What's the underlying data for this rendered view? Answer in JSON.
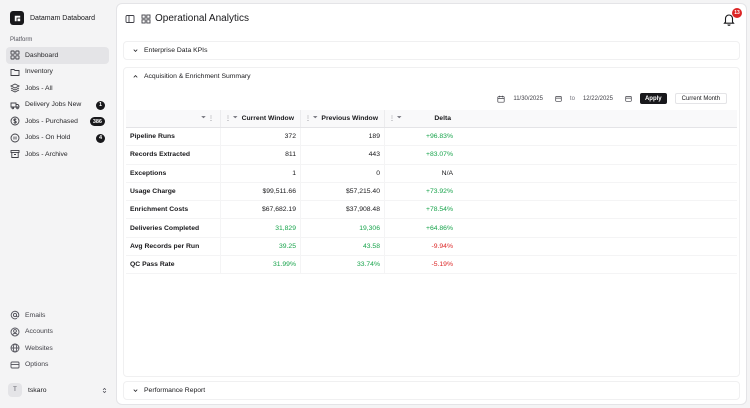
{
  "app": {
    "name": "Datamam Databoard"
  },
  "sidebar": {
    "group_label": "Platform",
    "items": [
      {
        "label": "Dashboard",
        "icon": "grid-icon",
        "active": true
      },
      {
        "label": "Inventory",
        "icon": "folder-icon"
      },
      {
        "label": "Jobs - All",
        "icon": "layers-icon"
      },
      {
        "label": "Delivery Jobs New",
        "icon": "truck-icon",
        "badge": "1"
      },
      {
        "label": "Jobs - Purchased",
        "icon": "dollar-icon",
        "badge": "386"
      },
      {
        "label": "Jobs - On Hold",
        "icon": "pause-icon",
        "badge": "4"
      },
      {
        "label": "Jobs - Archive",
        "icon": "archive-icon"
      }
    ],
    "secondary": [
      {
        "label": "Emails",
        "icon": "at-icon"
      },
      {
        "label": "Accounts",
        "icon": "user-circle-icon"
      },
      {
        "label": "Websites",
        "icon": "globe-icon"
      },
      {
        "label": "Options",
        "icon": "options-icon"
      }
    ],
    "user": {
      "initial": "T",
      "name": "tskaro"
    }
  },
  "header": {
    "title": "Operational Analytics",
    "notifications": "13"
  },
  "sections": {
    "kpis": "Enterprise Data KPIs",
    "summary": "Acquisition & Enrichment Summary",
    "performance": "Performance Report"
  },
  "filters": {
    "start_date": "11/30/2025",
    "separator": "to",
    "end_date": "12/22/2025",
    "apply": "Apply",
    "preset": "Current Month"
  },
  "table": {
    "columns": [
      "",
      "Current Window",
      "Previous Window",
      "Delta"
    ],
    "rows": [
      {
        "metric": "Pipeline Runs",
        "current": "372",
        "previous": "189",
        "delta": "+96.83%",
        "delta_status": "green"
      },
      {
        "metric": "Records Extracted",
        "current": "811",
        "previous": "443",
        "delta": "+83.07%",
        "delta_status": "green"
      },
      {
        "metric": "Exceptions",
        "current": "1",
        "previous": "0",
        "delta": "N/A",
        "delta_status": "neutral"
      },
      {
        "metric": "Usage Charge",
        "current": "$99,511.66",
        "previous": "$57,215.40",
        "delta": "+73.92%",
        "delta_status": "green"
      },
      {
        "metric": "Enrichment Costs",
        "current": "$67,682.19",
        "previous": "$37,908.48",
        "delta": "+78.54%",
        "delta_status": "green"
      },
      {
        "metric": "Deliveries Completed",
        "current": "31,829",
        "previous": "19,306",
        "delta": "+64.86%",
        "delta_status": "green",
        "values_status": "green"
      },
      {
        "metric": "Avg Records per Run",
        "current": "39.25",
        "previous": "43.58",
        "delta": "-9.94%",
        "delta_status": "red",
        "values_status": "green"
      },
      {
        "metric": "QC Pass Rate",
        "current": "31.99%",
        "previous": "33.74%",
        "delta": "-5.19%",
        "delta_status": "red",
        "values_status": "green"
      }
    ]
  },
  "colors": {
    "accent": "#18181b",
    "positive": "#16a34a",
    "negative": "#dc2626"
  }
}
